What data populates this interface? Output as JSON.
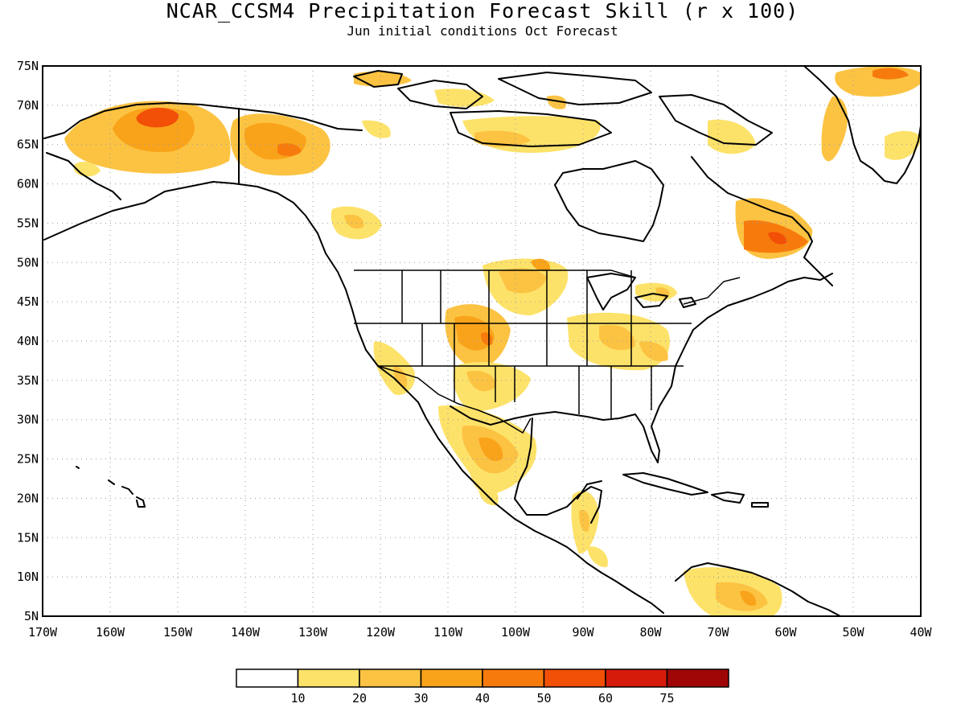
{
  "header": {
    "title": "NCAR_CCSM4 Precipitation Forecast Skill (r x 100)",
    "subtitle": "Jun initial conditions  Oct Forecast"
  },
  "map": {
    "projection": "lat-lon",
    "lon_range": [
      -170,
      -40
    ],
    "lat_range": [
      5,
      75
    ],
    "grid": "dotted",
    "lon_tick_labels": [
      "170W",
      "160W",
      "150W",
      "140W",
      "130W",
      "120W",
      "110W",
      "100W",
      "90W",
      "80W",
      "70W",
      "60W",
      "50W",
      "40W"
    ],
    "lat_tick_labels": [
      "5N",
      "10N",
      "15N",
      "20N",
      "25N",
      "30N",
      "35N",
      "40N",
      "45N",
      "50N",
      "55N",
      "60N",
      "65N",
      "70N",
      "75N"
    ]
  },
  "colorbar": {
    "levels": [
      "10",
      "20",
      "30",
      "40",
      "50",
      "60",
      "75"
    ],
    "colors": [
      "#ffffff",
      "#fde26a",
      "#fcc342",
      "#f9a31a",
      "#f77b0c",
      "#f24f07",
      "#d61b0b",
      "#a10606"
    ]
  },
  "colors": {
    "frame": "#000000",
    "grid": "#9a9a9a"
  }
}
